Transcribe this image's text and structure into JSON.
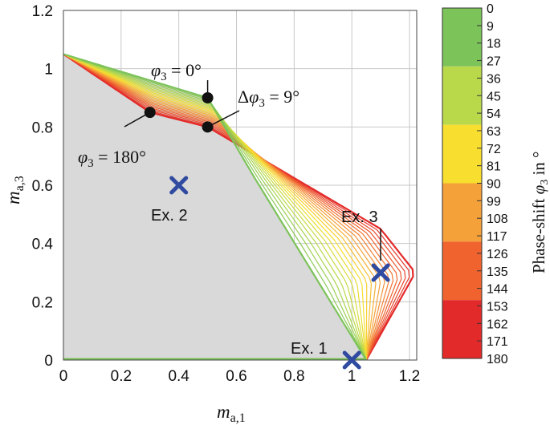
{
  "chart_data": {
    "type": "line",
    "xlabel": {
      "base": "m",
      "sub": "a,1"
    },
    "ylabel": {
      "base": "m",
      "sub": "a,3"
    },
    "xlim": [
      0,
      1.225
    ],
    "ylim": [
      0,
      1.2
    ],
    "xticks": [
      "0",
      "0.2",
      "0.4",
      "0.6",
      "0.8",
      "1",
      "1.2"
    ],
    "yticks": [
      "0",
      "0.2",
      "0.4",
      "0.6",
      "0.8",
      "1",
      "1.2"
    ],
    "grid": true,
    "shaded_region": {
      "fill": "#d9d9d9",
      "x": [
        0,
        0.5,
        0.66,
        1.05,
        1.05,
        0
      ],
      "y": [
        1.05,
        0.9,
        0.63,
        0,
        0,
        0
      ]
    },
    "phase_series": {
      "phi_deg": [
        0,
        9,
        18,
        27,
        36,
        45,
        54,
        63,
        72,
        81,
        90,
        99,
        108,
        117,
        126,
        135,
        144,
        153,
        162,
        171,
        180
      ],
      "phi0_curve": {
        "x": [
          0,
          0.5,
          0.66,
          1.05,
          0
        ],
        "y": [
          1.05,
          0.9,
          0.63,
          0,
          0
        ]
      },
      "phi180_curve": {
        "x": [
          0,
          0.3,
          0.5,
          1.1,
          1.22,
          1.05
        ],
        "y": [
          1.05,
          0.85,
          0.8,
          0.45,
          0.3,
          0
        ]
      }
    },
    "markers": [
      {
        "label": "Ex. 1",
        "x": 1.0,
        "y": 0.0
      },
      {
        "label": "Ex. 2",
        "x": 0.4,
        "y": 0.6
      },
      {
        "label": "Ex. 3",
        "x": 1.1,
        "y": 0.3
      }
    ],
    "marker_color": "#2f4aa0",
    "annotations": {
      "phi0": {
        "x": 0.5,
        "y": 0.9,
        "text_var": "φ",
        "text_sub": "3",
        "text_rest": " = 0°"
      },
      "phi180": {
        "x": 0.3,
        "y": 0.85,
        "text_var": "φ",
        "text_sub": "3",
        "text_rest": " = 180°"
      },
      "dphi": {
        "x": 0.5,
        "y": 0.8,
        "text_pre": "Δ",
        "text_var": "φ",
        "text_sub": "3",
        "text_rest": " = 9°"
      }
    },
    "colorbar": {
      "label_prefix": "Phase-shift ",
      "label_var": "φ",
      "label_sub": "3",
      "label_suffix": " in °",
      "ticks": [
        "0",
        "9",
        "18",
        "27",
        "36",
        "45",
        "54",
        "63",
        "72",
        "81",
        "90",
        "99",
        "108",
        "117",
        "126",
        "135",
        "144",
        "153",
        "162",
        "171",
        "180"
      ],
      "bands": [
        {
          "color": "#7cc35a"
        },
        {
          "color": "#b9d94b"
        },
        {
          "color": "#f7de2f"
        },
        {
          "color": "#f5a13a"
        },
        {
          "color": "#f0632f"
        },
        {
          "color": "#e32a2a"
        }
      ]
    }
  }
}
